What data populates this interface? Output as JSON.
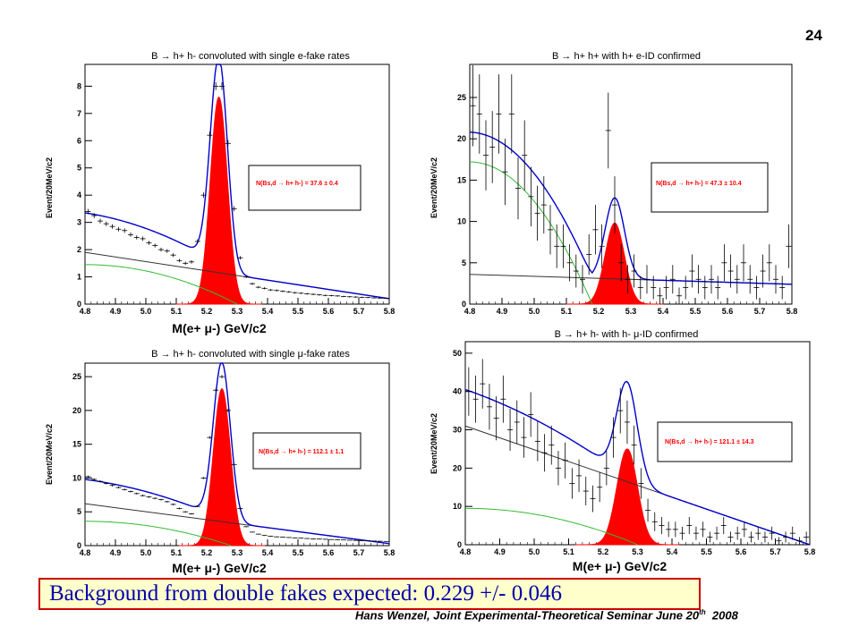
{
  "slide_number": "24",
  "caption": "Background from double fakes expected: 0.229 +/- 0.046",
  "footer": {
    "text": "Hans Wenzel, Joint Experimental-Theoretical Seminar June 20",
    "sup": "th",
    "year": "2008"
  },
  "colors": {
    "data": "#000000",
    "fit": "#0000cc",
    "signal": "#ff0000",
    "bg1": "#333333",
    "bg2": "#33bb33",
    "caption_bg": "#ffffcc",
    "caption_border": "#cc0000",
    "caption_text": "#0000aa"
  },
  "chart_data": [
    {
      "type": "line",
      "title": "B → h+ h- convoluted with single e-fake rates",
      "ylabel": "Event/20MeV/c2",
      "xlabel": "M(e+ μ-)   GeV/c2",
      "xlim": [
        4.8,
        5.8
      ],
      "ylim": [
        0,
        8.8
      ],
      "yticks": [
        0,
        1,
        2,
        3,
        4,
        5,
        6,
        7,
        8
      ],
      "xticks": [
        4.8,
        4.9,
        5.0,
        5.1,
        5.2,
        5.3,
        5.4,
        5.5,
        5.6,
        5.7,
        5.8
      ],
      "legend": "N(Bs,d → h+ h-) = 37.6 ± 0.4",
      "signal": {
        "mean": 5.24,
        "sigma": 0.028,
        "amp": 7.6
      },
      "bg_line": {
        "y0": 1.9,
        "y1": 0.2
      },
      "bg_green": {
        "y0": 1.45,
        "end": 5.3
      },
      "points": [
        [
          4.81,
          3.4
        ],
        [
          4.83,
          3.25
        ],
        [
          4.85,
          3.05
        ],
        [
          4.87,
          2.95
        ],
        [
          4.89,
          2.85
        ],
        [
          4.91,
          2.75
        ],
        [
          4.93,
          2.7
        ],
        [
          4.95,
          2.55
        ],
        [
          4.97,
          2.45
        ],
        [
          4.99,
          2.4
        ],
        [
          5.01,
          2.25
        ],
        [
          5.03,
          2.15
        ],
        [
          5.05,
          2.0
        ],
        [
          5.07,
          1.95
        ],
        [
          5.09,
          1.8
        ],
        [
          5.11,
          1.6
        ],
        [
          5.13,
          1.5
        ],
        [
          5.15,
          1.55
        ],
        [
          5.17,
          2.3
        ],
        [
          5.19,
          4.0
        ],
        [
          5.21,
          6.2
        ],
        [
          5.23,
          8.0
        ],
        [
          5.25,
          8.0
        ],
        [
          5.27,
          5.9
        ],
        [
          5.29,
          3.5
        ],
        [
          5.31,
          1.7
        ],
        [
          5.33,
          1.0
        ],
        [
          5.35,
          0.75
        ],
        [
          5.37,
          0.62
        ],
        [
          5.39,
          0.58
        ],
        [
          5.41,
          0.52
        ],
        [
          5.43,
          0.5
        ],
        [
          5.45,
          0.47
        ],
        [
          5.47,
          0.45
        ],
        [
          5.49,
          0.42
        ],
        [
          5.51,
          0.4
        ],
        [
          5.53,
          0.38
        ],
        [
          5.55,
          0.36
        ],
        [
          5.57,
          0.34
        ],
        [
          5.59,
          0.32
        ],
        [
          5.61,
          0.31
        ],
        [
          5.63,
          0.3
        ],
        [
          5.65,
          0.28
        ],
        [
          5.67,
          0.27
        ],
        [
          5.69,
          0.26
        ],
        [
          5.71,
          0.25
        ],
        [
          5.73,
          0.24
        ],
        [
          5.75,
          0.23
        ],
        [
          5.77,
          0.22
        ],
        [
          5.79,
          0.21
        ]
      ]
    },
    {
      "type": "line",
      "title": "B → h+ h+ with h+ e-ID confirmed",
      "ylabel": "Event/20MeV/c2",
      "xlabel": "",
      "xlim": [
        4.8,
        5.8
      ],
      "ylim": [
        0,
        29
      ],
      "yticks": [
        0,
        5,
        10,
        15,
        20,
        25
      ],
      "xticks": [
        4.8,
        4.9,
        5.0,
        5.1,
        5.2,
        5.3,
        5.4,
        5.5,
        5.6,
        5.7,
        5.8
      ],
      "legend": "N(Bs,d → h+ h-) = 47.3 ± 10.4",
      "signal": {
        "mean": 5.25,
        "sigma": 0.03,
        "amp": 9.8
      },
      "bg_line": {
        "y0": 3.6,
        "y1": 2.4
      },
      "bg_green": {
        "y0": 17.2,
        "end": 5.18
      },
      "points": [
        [
          4.81,
          24
        ],
        [
          4.83,
          23
        ],
        [
          4.85,
          18
        ],
        [
          4.87,
          19
        ],
        [
          4.89,
          23
        ],
        [
          4.91,
          16
        ],
        [
          4.93,
          23
        ],
        [
          4.95,
          14
        ],
        [
          4.97,
          18
        ],
        [
          4.99,
          13
        ],
        [
          5.01,
          11
        ],
        [
          5.03,
          12
        ],
        [
          5.05,
          9
        ],
        [
          5.07,
          7
        ],
        [
          5.09,
          7
        ],
        [
          5.11,
          5
        ],
        [
          5.13,
          4
        ],
        [
          5.15,
          3
        ],
        [
          5.17,
          6
        ],
        [
          5.19,
          9
        ],
        [
          5.21,
          7
        ],
        [
          5.23,
          21
        ],
        [
          5.25,
          12
        ],
        [
          5.27,
          5
        ],
        [
          5.29,
          3
        ],
        [
          5.31,
          4
        ],
        [
          5.33,
          2
        ],
        [
          5.35,
          3
        ],
        [
          5.37,
          2
        ],
        [
          5.39,
          1
        ],
        [
          5.41,
          2
        ],
        [
          5.43,
          3
        ],
        [
          5.45,
          1
        ],
        [
          5.47,
          2
        ],
        [
          5.49,
          4
        ],
        [
          5.51,
          3
        ],
        [
          5.53,
          2
        ],
        [
          5.55,
          3
        ],
        [
          5.57,
          2
        ],
        [
          5.59,
          5
        ],
        [
          5.61,
          4
        ],
        [
          5.63,
          3
        ],
        [
          5.65,
          5
        ],
        [
          5.67,
          3
        ],
        [
          5.69,
          2
        ],
        [
          5.71,
          4
        ],
        [
          5.73,
          5
        ],
        [
          5.75,
          3
        ],
        [
          5.77,
          2
        ],
        [
          5.79,
          7
        ]
      ]
    },
    {
      "type": "line",
      "title": "B → h+ h- convoluted with single μ-fake rates",
      "ylabel": "Event/20MeV/c2",
      "xlabel": "M(e+ μ-)   GeV/c2",
      "xlim": [
        4.8,
        5.8
      ],
      "ylim": [
        0,
        27
      ],
      "yticks": [
        0,
        5,
        10,
        15,
        20,
        25
      ],
      "xticks": [
        4.8,
        4.9,
        5.0,
        5.1,
        5.2,
        5.3,
        5.4,
        5.5,
        5.6,
        5.7,
        5.8
      ],
      "legend": "N(Bs,d → h+ h-) = 112.1 ± 1.1",
      "signal": {
        "mean": 5.25,
        "sigma": 0.028,
        "amp": 23.2
      },
      "bg_line": {
        "y0": 6.2,
        "y1": 0.3
      },
      "bg_green": {
        "y0": 3.6,
        "end": 5.28
      },
      "points": [
        [
          4.81,
          10.2
        ],
        [
          4.83,
          9.8
        ],
        [
          4.85,
          9.5
        ],
        [
          4.87,
          9.2
        ],
        [
          4.89,
          8.9
        ],
        [
          4.91,
          8.6
        ],
        [
          4.93,
          8.3
        ],
        [
          4.95,
          8.0
        ],
        [
          4.97,
          7.7
        ],
        [
          4.99,
          7.4
        ],
        [
          5.01,
          7.2
        ],
        [
          5.03,
          7.0
        ],
        [
          5.05,
          6.8
        ],
        [
          5.07,
          6.5
        ],
        [
          5.09,
          6.1
        ],
        [
          5.11,
          5.5
        ],
        [
          5.13,
          5.0
        ],
        [
          5.15,
          4.7
        ],
        [
          5.17,
          5.8
        ],
        [
          5.19,
          10.0
        ],
        [
          5.21,
          16.0
        ],
        [
          5.23,
          23.0
        ],
        [
          5.25,
          25.0
        ],
        [
          5.27,
          20.0
        ],
        [
          5.29,
          12.0
        ],
        [
          5.31,
          5.5
        ],
        [
          5.33,
          2.8
        ],
        [
          5.35,
          2.0
        ],
        [
          5.37,
          1.7
        ],
        [
          5.39,
          1.5
        ],
        [
          5.41,
          1.4
        ],
        [
          5.43,
          1.3
        ],
        [
          5.45,
          1.25
        ],
        [
          5.47,
          1.2
        ],
        [
          5.49,
          1.15
        ],
        [
          5.51,
          1.1
        ],
        [
          5.53,
          1.05
        ],
        [
          5.55,
          1.0
        ],
        [
          5.57,
          0.97
        ],
        [
          5.59,
          0.94
        ],
        [
          5.61,
          0.9
        ],
        [
          5.63,
          0.87
        ],
        [
          5.65,
          0.84
        ],
        [
          5.67,
          0.8
        ],
        [
          5.69,
          0.77
        ],
        [
          5.71,
          0.74
        ],
        [
          5.73,
          0.71
        ],
        [
          5.75,
          0.68
        ],
        [
          5.77,
          0.65
        ],
        [
          5.79,
          0.62
        ]
      ]
    },
    {
      "type": "line",
      "title": "B → h+ h- with h- μ-ID confirmed",
      "ylabel": "Event/20MeV/c2",
      "xlabel": "M(e+ μ-)   GeV/c2",
      "xlim": [
        4.8,
        5.8
      ],
      "ylim": [
        0,
        53
      ],
      "yticks": [
        0,
        10,
        20,
        30,
        40,
        50
      ],
      "xticks": [
        4.8,
        4.9,
        5.0,
        5.1,
        5.2,
        5.3,
        5.4,
        5.5,
        5.6,
        5.7,
        5.8
      ],
      "legend": "N(Bs,d → h+ h-) = 121.1 ± 14.3",
      "signal": {
        "mean": 5.27,
        "sigma": 0.03,
        "amp": 25
      },
      "bg_line": {
        "y0": 31,
        "y1": 0
      },
      "bg_green": {
        "y0": 9.5,
        "end": 5.3
      },
      "points": [
        [
          4.81,
          40
        ],
        [
          4.83,
          38
        ],
        [
          4.85,
          42
        ],
        [
          4.87,
          36
        ],
        [
          4.89,
          33
        ],
        [
          4.91,
          38
        ],
        [
          4.93,
          30
        ],
        [
          4.95,
          32
        ],
        [
          4.97,
          28
        ],
        [
          4.99,
          34
        ],
        [
          5.01,
          27
        ],
        [
          5.03,
          24
        ],
        [
          5.05,
          26
        ],
        [
          5.07,
          20
        ],
        [
          5.09,
          22
        ],
        [
          5.11,
          16
        ],
        [
          5.13,
          18
        ],
        [
          5.15,
          14
        ],
        [
          5.17,
          12
        ],
        [
          5.19,
          15
        ],
        [
          5.21,
          20
        ],
        [
          5.23,
          28
        ],
        [
          5.25,
          35
        ],
        [
          5.27,
          32
        ],
        [
          5.29,
          26
        ],
        [
          5.31,
          16
        ],
        [
          5.33,
          9
        ],
        [
          5.35,
          6
        ],
        [
          5.37,
          5
        ],
        [
          5.39,
          4
        ],
        [
          5.41,
          4
        ],
        [
          5.43,
          3
        ],
        [
          5.45,
          5
        ],
        [
          5.47,
          3
        ],
        [
          5.49,
          4
        ],
        [
          5.51,
          2
        ],
        [
          5.53,
          3
        ],
        [
          5.55,
          5
        ],
        [
          5.57,
          2
        ],
        [
          5.59,
          3
        ],
        [
          5.61,
          4
        ],
        [
          5.63,
          2
        ],
        [
          5.65,
          3
        ],
        [
          5.67,
          2
        ],
        [
          5.69,
          3
        ],
        [
          5.71,
          1
        ],
        [
          5.73,
          2
        ],
        [
          5.75,
          3
        ],
        [
          5.77,
          1
        ],
        [
          5.79,
          2
        ]
      ]
    }
  ]
}
